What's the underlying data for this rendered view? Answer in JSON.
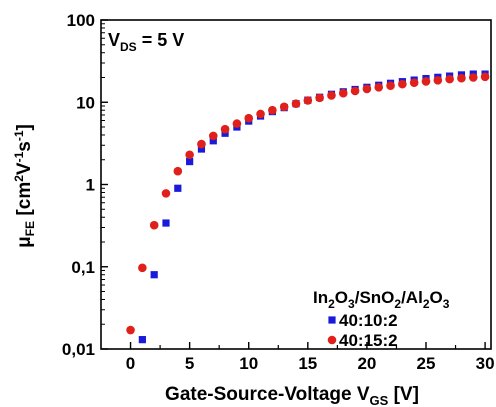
{
  "chart_data": {
    "type": "scatter",
    "annotation": {
      "main": "V",
      "sub": "DS",
      "rest": " = 5 V"
    },
    "xlabel": {
      "main": "Gate-Source-Voltage V",
      "sub": "GS",
      "rest": " [V]"
    },
    "ylabel": {
      "mu": "μ",
      "sub": "FE",
      "rest": " [cm",
      "sup1": "2",
      "mid1": "V",
      "sup2": "-1",
      "mid2": "s",
      "sup3": "-1",
      "end": "]"
    },
    "xlim": [
      -2.5,
      30.5
    ],
    "ylim": [
      0.01,
      100
    ],
    "yscale": "log",
    "x_ticks": [
      0,
      5,
      10,
      15,
      20,
      25,
      30
    ],
    "x_tick_labels": [
      "0",
      "5",
      "10",
      "15",
      "20",
      "25",
      "30"
    ],
    "y_ticks": [
      0.01,
      0.1,
      1,
      10,
      100
    ],
    "y_tick_labels": [
      "0,01",
      "0,1",
      "1",
      "10",
      "100"
    ],
    "legend": {
      "title_parts": [
        {
          "t": "In"
        },
        {
          "t": "2",
          "sub": true
        },
        {
          "t": "O"
        },
        {
          "t": "3",
          "sub": true
        },
        {
          "t": "/SnO"
        },
        {
          "t": "2",
          "sub": true
        },
        {
          "t": "/Al"
        },
        {
          "t": "2",
          "sub": true
        },
        {
          "t": "O"
        },
        {
          "t": "3",
          "sub": true
        }
      ],
      "position": "bottom-right"
    },
    "series": [
      {
        "name": "40:10:2",
        "color": "#1a1adb",
        "marker": "square",
        "x": [
          1,
          2,
          3,
          4,
          5,
          6,
          7,
          8,
          9,
          10,
          11,
          12,
          13,
          14,
          15,
          16,
          17,
          18,
          19,
          20,
          21,
          22,
          23,
          24,
          25,
          26,
          27,
          28,
          29,
          30
        ],
        "y": [
          0.013,
          0.08,
          0.34,
          0.9,
          1.9,
          2.7,
          3.4,
          4.2,
          5.0,
          5.9,
          6.8,
          7.7,
          8.6,
          9.6,
          10.6,
          11.5,
          12.5,
          13.4,
          14.3,
          15.2,
          16.1,
          17.0,
          17.8,
          18.6,
          19.4,
          20.1,
          20.8,
          21.5,
          22.0,
          22.0
        ]
      },
      {
        "name": "40:15:2",
        "color": "#e0201b",
        "marker": "circle",
        "x": [
          0,
          1,
          2,
          3,
          4,
          5,
          6,
          7,
          8,
          9,
          10,
          11,
          12,
          13,
          14,
          15,
          16,
          17,
          18,
          19,
          20,
          21,
          22,
          23,
          24,
          25,
          26,
          27,
          28,
          29,
          30
        ],
        "y": [
          0.017,
          0.097,
          0.32,
          0.78,
          1.45,
          2.3,
          3.1,
          3.9,
          4.7,
          5.5,
          6.4,
          7.2,
          8.0,
          8.8,
          9.6,
          10.5,
          11.3,
          12.1,
          12.9,
          13.7,
          14.5,
          15.2,
          15.9,
          16.6,
          17.3,
          17.9,
          18.5,
          19.1,
          19.6,
          20.0,
          20.4
        ]
      }
    ]
  }
}
